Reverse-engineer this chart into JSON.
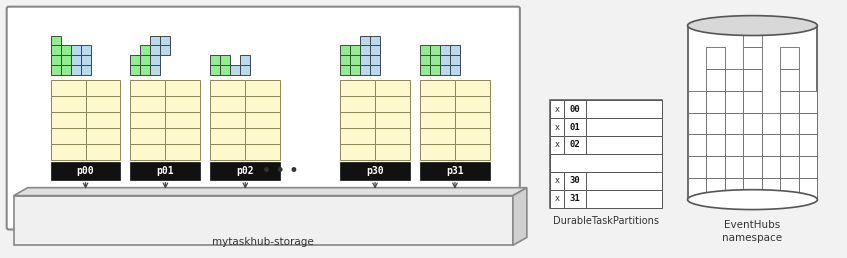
{
  "bg_color": "#f2f2f2",
  "white": "#ffffff",
  "storage_box_label": "mytaskhub-storage",
  "partition_labels": [
    "p00",
    "p01",
    "p02",
    "p30",
    "p31"
  ],
  "yellow_color": "#fef9cd",
  "green_color": "#90ee90",
  "blue_color": "#b8d9ee",
  "table_rows": [
    "00",
    "01",
    "02",
    "",
    "30",
    "31"
  ],
  "table_label": "DurableTaskPartitions",
  "cylinder_label": "EventHubs\nnamespace",
  "dots": "• • •"
}
